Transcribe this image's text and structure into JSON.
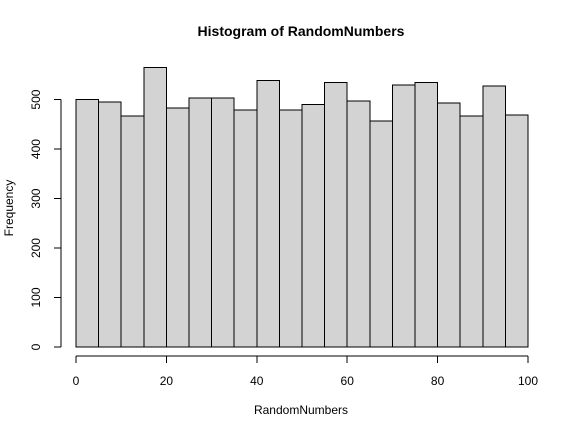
{
  "chart_data": {
    "type": "bar",
    "title": "Histogram of RandomNumbers",
    "xlabel": "RandomNumbers",
    "ylabel": "Frequency",
    "bins": [
      [
        0,
        5
      ],
      [
        5,
        10
      ],
      [
        10,
        15
      ],
      [
        15,
        20
      ],
      [
        20,
        25
      ],
      [
        25,
        30
      ],
      [
        30,
        35
      ],
      [
        35,
        40
      ],
      [
        40,
        45
      ],
      [
        45,
        50
      ],
      [
        50,
        55
      ],
      [
        55,
        60
      ],
      [
        60,
        65
      ],
      [
        65,
        70
      ],
      [
        70,
        75
      ],
      [
        75,
        80
      ],
      [
        80,
        85
      ],
      [
        85,
        90
      ],
      [
        90,
        95
      ],
      [
        95,
        100
      ]
    ],
    "values": [
      500,
      495,
      467,
      565,
      483,
      503,
      503,
      479,
      539,
      479,
      490,
      535,
      497,
      457,
      529,
      535,
      493,
      467,
      527,
      469
    ],
    "xlim": [
      0,
      100
    ],
    "ylim": [
      0,
      580
    ],
    "xticks": [
      0,
      20,
      40,
      60,
      80,
      100
    ],
    "yticks": [
      0,
      100,
      200,
      300,
      400,
      500
    ],
    "grid": false,
    "colors": {
      "bar_fill": "#d3d3d3",
      "bar_stroke": "#000000",
      "axis": "#000000"
    }
  }
}
